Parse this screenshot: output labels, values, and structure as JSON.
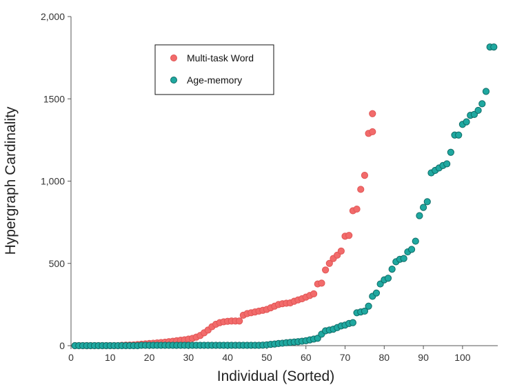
{
  "chart_data": {
    "type": "scatter",
    "title": "",
    "xlabel": "Individual (Sorted)",
    "ylabel": "Hypergraph Cardinality",
    "xlim": [
      0,
      109
    ],
    "ylim": [
      0,
      2000
    ],
    "x_ticks": [
      0,
      10,
      20,
      30,
      40,
      50,
      60,
      70,
      80,
      90,
      100
    ],
    "y_ticks": [
      {
        "value": 0,
        "label": "0"
      },
      {
        "value": 500,
        "label": "500"
      },
      {
        "value": 1000,
        "label": "1,000"
      },
      {
        "value": 1500,
        "label": "1500"
      },
      {
        "value": 2000,
        "label": "2,000"
      }
    ],
    "grid": false,
    "legend": {
      "location": "upper-left"
    },
    "series": [
      {
        "name": "Multi-task Word",
        "color": "#f26b6b",
        "stroke": "#e05555",
        "x": [
          1,
          2,
          3,
          4,
          5,
          6,
          7,
          8,
          9,
          10,
          11,
          12,
          13,
          14,
          15,
          16,
          17,
          18,
          19,
          20,
          21,
          22,
          23,
          24,
          25,
          26,
          27,
          28,
          29,
          30,
          31,
          32,
          33,
          34,
          35,
          36,
          37,
          38,
          39,
          40,
          41,
          42,
          43,
          44,
          45,
          46,
          47,
          48,
          49,
          50,
          51,
          52,
          53,
          54,
          55,
          56,
          57,
          58,
          59,
          60,
          61,
          62,
          63,
          64,
          65,
          66,
          67,
          68,
          69,
          70,
          71,
          72,
          73,
          74,
          75,
          76,
          77
        ],
        "y": [
          0,
          0,
          0,
          0,
          0,
          0,
          0,
          0,
          0,
          0,
          0,
          0,
          2,
          3,
          4,
          5,
          7,
          9,
          11,
          13,
          15,
          17,
          19,
          21,
          24,
          27,
          30,
          33,
          36,
          40,
          44,
          52,
          62,
          78,
          95,
          115,
          130,
          140,
          145,
          148,
          150,
          150,
          150,
          185,
          195,
          200,
          205,
          210,
          215,
          220,
          230,
          240,
          250,
          255,
          258,
          260,
          270,
          278,
          285,
          295,
          305,
          315,
          375,
          380,
          460,
          500,
          530,
          550,
          575,
          665,
          670,
          820,
          830,
          950,
          1035,
          1290,
          1300
        ],
        "extra_points": [
          {
            "x": 77,
            "y": 1410
          }
        ]
      },
      {
        "name": "Age-memory",
        "color": "#1fa8a0",
        "stroke": "#0e6b66",
        "x": [
          1,
          2,
          3,
          4,
          5,
          6,
          7,
          8,
          9,
          10,
          11,
          12,
          13,
          14,
          15,
          16,
          17,
          18,
          19,
          20,
          21,
          22,
          23,
          24,
          25,
          26,
          27,
          28,
          29,
          30,
          31,
          32,
          33,
          34,
          35,
          36,
          37,
          38,
          39,
          40,
          41,
          42,
          43,
          44,
          45,
          46,
          47,
          48,
          49,
          50,
          51,
          52,
          53,
          54,
          55,
          56,
          57,
          58,
          59,
          60,
          61,
          62,
          63,
          64,
          65,
          66,
          67,
          68,
          69,
          70,
          71,
          72,
          73,
          74,
          75,
          76,
          77,
          78,
          79,
          80,
          81,
          82,
          83,
          84,
          85,
          86,
          87,
          88,
          89,
          90,
          91,
          92,
          93,
          94,
          95,
          96,
          97,
          98,
          99,
          100,
          101,
          102,
          103,
          104,
          105,
          106,
          107,
          108
        ],
        "y": [
          0,
          0,
          0,
          0,
          0,
          0,
          0,
          0,
          0,
          0,
          0,
          0,
          0,
          0,
          0,
          0,
          0,
          2,
          2,
          2,
          2,
          2,
          2,
          2,
          2,
          2,
          2,
          2,
          2,
          2,
          2,
          2,
          2,
          2,
          2,
          2,
          2,
          2,
          2,
          2,
          2,
          2,
          2,
          2,
          2,
          2,
          2,
          2,
          3,
          5,
          8,
          10,
          13,
          15,
          18,
          20,
          22,
          24,
          27,
          30,
          35,
          40,
          45,
          70,
          90,
          95,
          100,
          110,
          120,
          125,
          135,
          140,
          200,
          205,
          210,
          240,
          300,
          320,
          375,
          400,
          410,
          465,
          510,
          525,
          530,
          570,
          585,
          635,
          790,
          840,
          875,
          1050,
          1065,
          1080,
          1095,
          1105,
          1175,
          1280,
          1280,
          1345,
          1360,
          1400,
          1405,
          1430,
          1470,
          1545,
          1815,
          1815
        ]
      }
    ]
  }
}
